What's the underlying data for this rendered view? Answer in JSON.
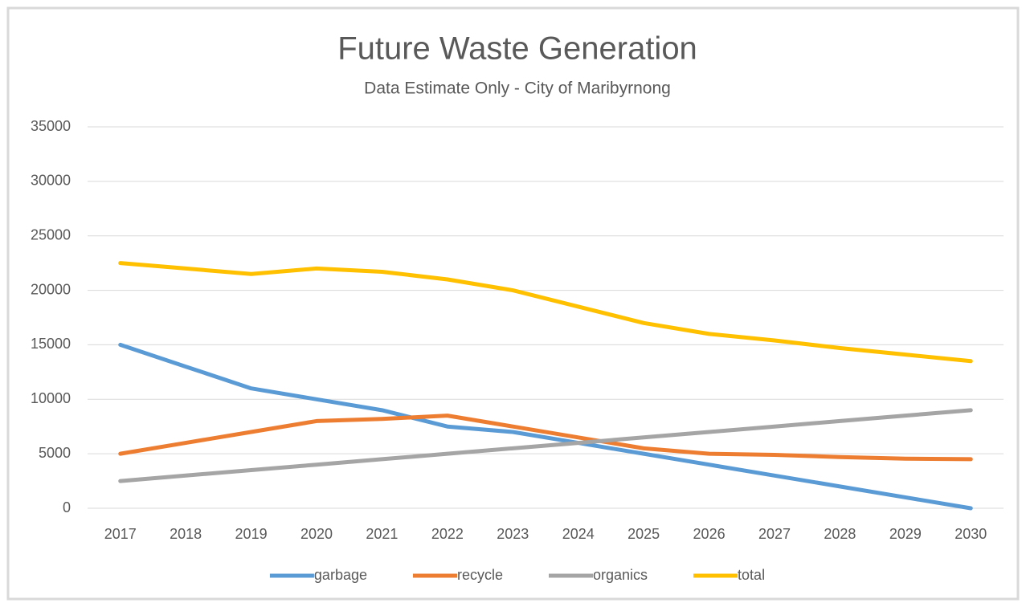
{
  "chart_data": {
    "type": "line",
    "title": "Future Waste Generation",
    "subtitle": "Data Estimate Only - City of Maribyrnong",
    "categories": [
      "2017",
      "2018",
      "2019",
      "2020",
      "2021",
      "2022",
      "2023",
      "2024",
      "2025",
      "2026",
      "2027",
      "2028",
      "2029",
      "2030"
    ],
    "series": [
      {
        "name": "garbage",
        "color": "#5b9bd5",
        "values": [
          15000,
          13000,
          11000,
          10000,
          9000,
          7500,
          7000,
          6000,
          5000,
          4000,
          3000,
          2000,
          1000,
          0
        ]
      },
      {
        "name": "recycle",
        "color": "#ed7d31",
        "values": [
          5000,
          6000,
          7000,
          8000,
          8200,
          8500,
          7500,
          6500,
          5500,
          5000,
          4900,
          4700,
          4550,
          4500
        ]
      },
      {
        "name": "organics",
        "color": "#a5a5a5",
        "values": [
          2500,
          3000,
          3500,
          4000,
          4500,
          5000,
          5500,
          6000,
          6500,
          7000,
          7500,
          8000,
          8500,
          9000
        ]
      },
      {
        "name": "total",
        "color": "#ffc000",
        "values": [
          22500,
          22000,
          21500,
          22000,
          21700,
          21000,
          20000,
          18500,
          17000,
          16000,
          15400,
          14700,
          14100,
          13500
        ]
      }
    ],
    "ylim": [
      0,
      35000
    ],
    "yticks": [
      0,
      5000,
      10000,
      15000,
      20000,
      25000,
      30000,
      35000
    ],
    "grid": true,
    "legend": "bottom"
  }
}
